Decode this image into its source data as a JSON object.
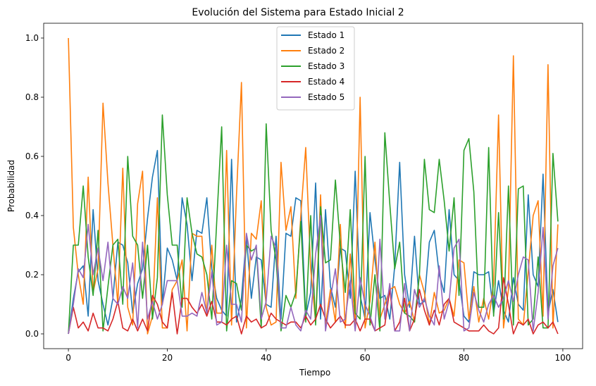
{
  "chart_data": {
    "type": "line",
    "title": "Evolución del Sistema para Estado Inicial 2",
    "xlabel": "Tiempo",
    "ylabel": "Probabilidad",
    "xlim": [
      -5,
      104
    ],
    "ylim": [
      -0.05,
      1.05
    ],
    "xticks": [
      0,
      20,
      40,
      60,
      80,
      100
    ],
    "yticks": [
      0.0,
      0.2,
      0.4,
      0.6,
      0.8,
      1.0
    ],
    "xtick_labels": [
      "0",
      "20",
      "40",
      "60",
      "80",
      "100"
    ],
    "ytick_labels": [
      "0.0",
      "0.2",
      "0.4",
      "0.6",
      "0.8",
      "1.0"
    ],
    "grid": false,
    "legend_position": "top-center",
    "x": [
      0,
      1,
      2,
      3,
      4,
      5,
      6,
      7,
      8,
      9,
      10,
      11,
      12,
      13,
      14,
      15,
      16,
      17,
      18,
      19,
      20,
      21,
      22,
      23,
      24,
      25,
      26,
      27,
      28,
      29,
      30,
      31,
      32,
      33,
      34,
      35,
      36,
      37,
      38,
      39,
      40,
      41,
      42,
      43,
      44,
      45,
      46,
      47,
      48,
      49,
      50,
      51,
      52,
      53,
      54,
      55,
      56,
      57,
      58,
      59,
      60,
      61,
      62,
      63,
      64,
      65,
      66,
      67,
      68,
      69,
      70,
      71,
      72,
      73,
      74,
      75,
      76,
      77,
      78,
      79,
      80,
      81,
      82,
      83,
      84,
      85,
      86,
      87,
      88,
      89,
      90,
      91,
      92,
      93,
      94,
      95,
      96,
      97,
      98,
      99
    ],
    "series": [
      {
        "name": "Estado 1",
        "color": "#1f77b4",
        "values": [
          0.0,
          0.12,
          0.21,
          0.23,
          0.06,
          0.42,
          0.18,
          0.1,
          0.03,
          0.12,
          0.31,
          0.3,
          0.24,
          0.07,
          0.17,
          0.22,
          0.39,
          0.53,
          0.62,
          0.1,
          0.29,
          0.25,
          0.18,
          0.46,
          0.37,
          0.18,
          0.35,
          0.34,
          0.46,
          0.22,
          0.12,
          0.08,
          0.06,
          0.59,
          0.04,
          0.12,
          0.33,
          0.12,
          0.26,
          0.25,
          0.1,
          0.09,
          0.33,
          0.05,
          0.34,
          0.33,
          0.46,
          0.45,
          0.06,
          0.14,
          0.51,
          0.05,
          0.42,
          0.16,
          0.09,
          0.29,
          0.28,
          0.12,
          0.55,
          0.13,
          0.05,
          0.41,
          0.25,
          0.12,
          0.13,
          0.05,
          0.23,
          0.58,
          0.2,
          0.09,
          0.33,
          0.1,
          0.11,
          0.31,
          0.35,
          0.2,
          0.14,
          0.42,
          0.2,
          0.18,
          0.06,
          0.04,
          0.21,
          0.2,
          0.2,
          0.21,
          0.07,
          0.18,
          0.08,
          0.04,
          0.19,
          0.1,
          0.08,
          0.47,
          0.2,
          0.16,
          0.54,
          0.07,
          0.15,
          0.04
        ]
      },
      {
        "name": "Estado 2",
        "color": "#ff7f0e",
        "values": [
          1.0,
          0.36,
          0.2,
          0.1,
          0.53,
          0.14,
          0.22,
          0.78,
          0.51,
          0.3,
          0.1,
          0.56,
          0.09,
          0.03,
          0.44,
          0.55,
          0.0,
          0.06,
          0.46,
          0.02,
          0.02,
          0.15,
          0.18,
          0.25,
          0.01,
          0.34,
          0.33,
          0.33,
          0.06,
          0.3,
          0.07,
          0.07,
          0.62,
          0.03,
          0.47,
          0.85,
          0.02,
          0.34,
          0.32,
          0.45,
          0.09,
          0.03,
          0.04,
          0.58,
          0.35,
          0.43,
          0.12,
          0.4,
          0.63,
          0.22,
          0.04,
          0.47,
          0.03,
          0.15,
          0.04,
          0.37,
          0.02,
          0.27,
          0.03,
          0.8,
          0.02,
          0.11,
          0.31,
          0.05,
          0.1,
          0.15,
          0.16,
          0.1,
          0.07,
          0.11,
          0.04,
          0.2,
          0.14,
          0.03,
          0.14,
          0.07,
          0.08,
          0.12,
          0.06,
          0.25,
          0.24,
          0.05,
          0.16,
          0.04,
          0.12,
          0.05,
          0.17,
          0.74,
          0.02,
          0.15,
          0.94,
          0.05,
          0.03,
          0.21,
          0.4,
          0.45,
          0.06,
          0.91,
          0.02,
          0.37
        ]
      },
      {
        "name": "Estado 3",
        "color": "#2ca02c",
        "values": [
          0.0,
          0.3,
          0.3,
          0.5,
          0.26,
          0.13,
          0.35,
          0.01,
          0.16,
          0.3,
          0.32,
          0.1,
          0.6,
          0.33,
          0.3,
          0.12,
          0.3,
          0.05,
          0.19,
          0.74,
          0.47,
          0.3,
          0.3,
          0.09,
          0.46,
          0.34,
          0.27,
          0.26,
          0.2,
          0.05,
          0.38,
          0.7,
          0.01,
          0.18,
          0.17,
          0.08,
          0.3,
          0.28,
          0.29,
          0.02,
          0.71,
          0.35,
          0.25,
          0.01,
          0.13,
          0.09,
          0.14,
          0.38,
          0.04,
          0.4,
          0.03,
          0.43,
          0.24,
          0.25,
          0.52,
          0.3,
          0.14,
          0.42,
          0.07,
          0.05,
          0.6,
          0.03,
          0.2,
          0.01,
          0.68,
          0.44,
          0.22,
          0.31,
          0.07,
          0.06,
          0.04,
          0.2,
          0.59,
          0.42,
          0.41,
          0.59,
          0.45,
          0.28,
          0.46,
          0.13,
          0.62,
          0.66,
          0.48,
          0.09,
          0.09,
          0.63,
          0.06,
          0.41,
          0.05,
          0.5,
          0.03,
          0.49,
          0.5,
          0.03,
          0.05,
          0.26,
          0.02,
          0.02,
          0.61,
          0.38
        ]
      },
      {
        "name": "Estado 4",
        "color": "#d62728",
        "values": [
          0.0,
          0.09,
          0.02,
          0.04,
          0.01,
          0.07,
          0.02,
          0.02,
          0.01,
          0.05,
          0.11,
          0.02,
          0.01,
          0.05,
          0.01,
          0.05,
          0.01,
          0.13,
          0.1,
          0.04,
          0.02,
          0.14,
          0.0,
          0.12,
          0.12,
          0.09,
          0.07,
          0.1,
          0.06,
          0.11,
          0.04,
          0.04,
          0.03,
          0.05,
          0.06,
          0.0,
          0.06,
          0.04,
          0.05,
          0.02,
          0.03,
          0.07,
          0.05,
          0.04,
          0.03,
          0.04,
          0.04,
          0.02,
          0.06,
          0.03,
          0.05,
          0.1,
          0.05,
          0.02,
          0.04,
          0.06,
          0.03,
          0.03,
          0.05,
          0.01,
          0.05,
          0.05,
          0.01,
          0.02,
          0.03,
          0.15,
          0.01,
          0.04,
          0.12,
          0.01,
          0.05,
          0.15,
          0.08,
          0.03,
          0.08,
          0.03,
          0.1,
          0.12,
          0.04,
          0.03,
          0.02,
          0.01,
          0.01,
          0.01,
          0.03,
          0.01,
          0.0,
          0.02,
          0.19,
          0.1,
          0.0,
          0.04,
          0.03,
          0.05,
          0.0,
          0.03,
          0.04,
          0.02,
          0.04,
          0.0
        ]
      },
      {
        "name": "Estado 5",
        "color": "#9467bd",
        "values": [
          0.0,
          0.1,
          0.22,
          0.19,
          0.37,
          0.2,
          0.29,
          0.18,
          0.31,
          0.12,
          0.1,
          0.16,
          0.12,
          0.24,
          0.02,
          0.31,
          0.05,
          0.11,
          0.05,
          0.1,
          0.18,
          0.18,
          0.18,
          0.06,
          0.06,
          0.07,
          0.06,
          0.14,
          0.07,
          0.21,
          0.03,
          0.04,
          0.3,
          0.1,
          0.1,
          0.04,
          0.34,
          0.25,
          0.3,
          0.05,
          0.11,
          0.33,
          0.29,
          0.02,
          0.02,
          0.09,
          0.03,
          0.01,
          0.08,
          0.05,
          0.27,
          0.4,
          0.01,
          0.12,
          0.22,
          0.04,
          0.05,
          0.18,
          0.01,
          0.19,
          0.1,
          0.06,
          0.01,
          0.32,
          0.05,
          0.17,
          0.01,
          0.01,
          0.17,
          0.01,
          0.15,
          0.09,
          0.12,
          0.06,
          0.03,
          0.23,
          0.05,
          0.11,
          0.29,
          0.32,
          0.01,
          0.02,
          0.14,
          0.08,
          0.04,
          0.1,
          0.13,
          0.09,
          0.12,
          0.18,
          0.11,
          0.2,
          0.26,
          0.25,
          0.01,
          0.14,
          0.36,
          0.05,
          0.23,
          0.29
        ]
      }
    ]
  }
}
